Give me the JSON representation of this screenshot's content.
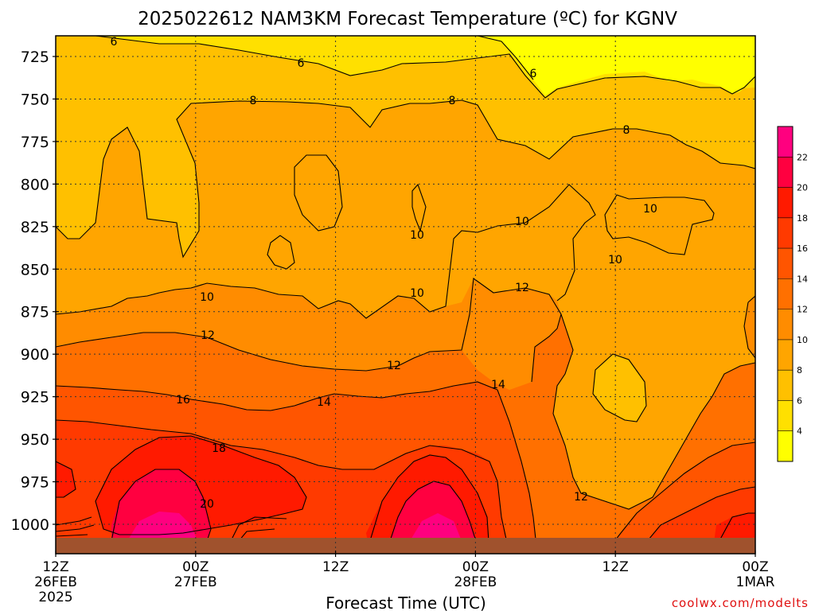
{
  "chart_data": {
    "type": "heatmap",
    "title": "2025022612 NAM3KM Forecast Temperature (ºC) for KGNV",
    "xlabel": "Forecast Time (UTC)",
    "ylabel": "",
    "credit": "coolwx.com/modelts",
    "y_axis": {
      "ticks": [
        "725",
        "750",
        "775",
        "800",
        "825",
        "850",
        "875",
        "900",
        "925",
        "950",
        "975",
        "1000"
      ],
      "values": [
        725,
        750,
        775,
        800,
        825,
        850,
        875,
        900,
        925,
        950,
        975,
        1000
      ],
      "range": [
        710,
        1010
      ],
      "inverted": true,
      "gridlines": "dotted"
    },
    "x_axis": {
      "ticks": [
        {
          "time": "12Z",
          "date": "26FEB",
          "year": "2025"
        },
        {
          "time": "00Z",
          "date": "27FEB",
          "year": ""
        },
        {
          "time": "12Z",
          "date": "",
          "year": ""
        },
        {
          "time": "00Z",
          "date": "28FEB",
          "year": ""
        },
        {
          "time": "12Z",
          "date": "",
          "year": ""
        },
        {
          "time": "00Z",
          "date": "1MAR",
          "year": ""
        }
      ],
      "range_hours": [
        0,
        60
      ]
    },
    "colorbar": {
      "labels": [
        "4",
        "6",
        "8",
        "10",
        "12",
        "14",
        "16",
        "18",
        "20",
        "22"
      ],
      "colors": [
        "#ffff00",
        "#ffe000",
        "#ffc000",
        "#ffa500",
        "#ff8c00",
        "#ff7000",
        "#ff5500",
        "#ff3a00",
        "#ff1a00",
        "#ff0040",
        "#ff007f"
      ]
    },
    "ground_color": "#a0522d",
    "contours": [
      {
        "level": 6,
        "labels": [
          {
            "text": "6"
          },
          {
            "text": "6"
          },
          {
            "text": "6"
          }
        ]
      },
      {
        "level": 8,
        "labels": [
          {
            "text": "8"
          },
          {
            "text": "8"
          },
          {
            "text": "8"
          }
        ]
      },
      {
        "level": 10,
        "labels": [
          {
            "text": "10"
          },
          {
            "text": "10"
          },
          {
            "text": "10"
          },
          {
            "text": "10"
          },
          {
            "text": "10"
          },
          {
            "text": "10"
          }
        ]
      },
      {
        "level": 12,
        "labels": [
          {
            "text": "12"
          },
          {
            "text": "12"
          },
          {
            "text": "12"
          },
          {
            "text": "12"
          }
        ]
      },
      {
        "level": 14,
        "labels": [
          {
            "text": "14"
          },
          {
            "text": "14"
          }
        ]
      },
      {
        "level": 16,
        "labels": [
          {
            "text": "16"
          }
        ]
      },
      {
        "level": 18,
        "labels": [
          {
            "text": "18"
          }
        ]
      },
      {
        "level": 20,
        "labels": [
          {
            "text": "20"
          }
        ]
      }
    ]
  }
}
